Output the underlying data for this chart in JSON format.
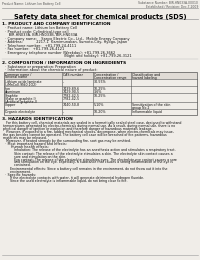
{
  "bg_color": "#f0ede8",
  "header_left": "Product Name: Lithium Ion Battery Cell",
  "header_right1": "Substance Number: BIR-HN033A-00010",
  "header_right2": "Established / Revision: Dec.7.2009",
  "main_title": "Safety data sheet for chemical products (SDS)",
  "section1_title": "1. PRODUCT AND COMPANY IDENTIFICATION",
  "s1_lines": [
    "  · Product name: Lithium Ion Battery Cell",
    "  · Product code: Cylindrical-type cell",
    "     BIR-HN033A, BIR-HN033B, BIR-HN033A",
    "  · Company name:    Sanyo Electric Co., Ltd.,  Mobile Energy Company",
    "  · Address:            2217-1  Kamimunakan, Sumoto-City, Hyogo, Japan",
    "  · Telephone number:   +81-799-24-4111",
    "  · Fax number:   +81-799-26-4121",
    "  · Emergency telephone number (Weekday): +81-799-26-3662",
    "                                                      (Night and holiday): +81-799-26-3121"
  ],
  "section2_title": "2. COMPOSITION / INFORMATION ON INGREDIENTS",
  "s2_sub1": "  · Substance or preparation: Preparation",
  "s2_sub2": "  · Information about the chemical nature of product:",
  "col_headers": [
    "Common name /\nSeveral name",
    "CAS number",
    "Concentration /\nConcentration range",
    "Classification and\nhazard labeling"
  ],
  "table_rows": [
    [
      "Lithium oxide laminate\n(LiMnCo0.9Ni0.1O2)",
      "-",
      "30-55%",
      ""
    ],
    [
      "Iron\nAluminum",
      "7439-89-6\n7429-90-5",
      "10-25%\n3-6%",
      ""
    ],
    [
      "Graphite\n(flake or graphite-l)\n(Artificial graphite-l)",
      "7782-42-5\n7782-42-5",
      "10-25%",
      ""
    ],
    [
      "Copper",
      "7440-50-8",
      "5-10%",
      "Sensitization of the skin\ngroup No.2"
    ],
    [
      "Organic electrolyte",
      "-",
      "10-20%",
      "Inflammable liquid"
    ]
  ],
  "section3_title": "3. HAZARDS IDENTIFICATION",
  "s3_para1": [
    "   For this battery cell, chemical materials are sealed in a hermetically sealed steel case, designed to withstand",
    "temperatures generated by electro-chemicals during normal use. As a result, during normal use, there is no",
    "physical danger of ignition or explosion and therefore danger of hazardous materials leakage.",
    "   However, if exposed to a fire, added mechanical shocks, decompose, when electro-chemicals may issue,",
    "the gas besides cannot be operated. The battery cell case will be breached of fire-patterns, hazardous",
    "materials may be released.",
    "   Moreover, if heated strongly by the surrounding fire, soot gas may be emitted."
  ],
  "s3_sub1": "  · Most important hazard and effects:",
  "s3_sub1a": "       Human health effects:",
  "s3_health": [
    "           Inhalation: The release of the electrolyte has an anesthesia action and stimulates a respiratory tract.",
    "           Skin contact: The release of the electrolyte stimulates a skin. The electrolyte skin contact causes a",
    "           sore and stimulation on the skin.",
    "           Eye contact: The release of the electrolyte stimulates eyes. The electrolyte eye contact causes a sore",
    "           and stimulation on the eye. Especially, a substance that causes a strong inflammation of the eye is",
    "           contained."
  ],
  "s3_env": [
    "       Environmental effects: Since a battery cell remains in the environment, do not throw out it into the",
    "       environment."
  ],
  "s3_sub2": "  · Specific hazards:",
  "s3_specific": [
    "       If the electrolyte contacts with water, it will generate detrimental hydrogen fluoride.",
    "       Since the used electrolyte is inflammable liquid, do not bring close to fire."
  ]
}
